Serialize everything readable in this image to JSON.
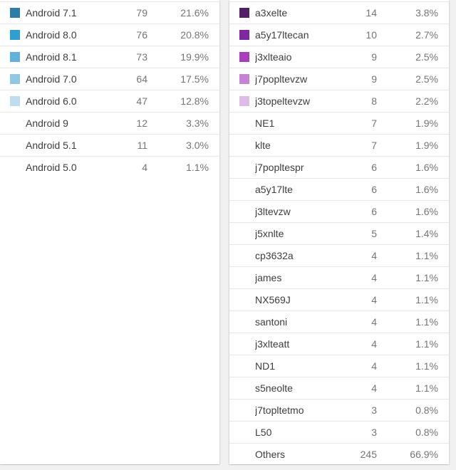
{
  "chart_data": [
    {
      "type": "table",
      "name": "android-version-distribution",
      "title": "",
      "columns": [
        "label",
        "count",
        "percent"
      ],
      "legend_position": "left",
      "rows": [
        {
          "label": "Android 7.1",
          "count": 79,
          "percent": "21.6%",
          "swatch": "#2d7daa"
        },
        {
          "label": "Android 8.0",
          "count": 76,
          "percent": "20.8%",
          "swatch": "#2f9ed3"
        },
        {
          "label": "Android 8.1",
          "count": 73,
          "percent": "19.9%",
          "swatch": "#64b1db"
        },
        {
          "label": "Android 7.0",
          "count": 64,
          "percent": "17.5%",
          "swatch": "#92c7e3"
        },
        {
          "label": "Android 6.0",
          "count": 47,
          "percent": "12.8%",
          "swatch": "#bedef0"
        },
        {
          "label": "Android 9",
          "count": 12,
          "percent": "3.3%",
          "swatch": null
        },
        {
          "label": "Android 5.1",
          "count": 11,
          "percent": "3.0%",
          "swatch": null
        },
        {
          "label": "Android 5.0",
          "count": 4,
          "percent": "1.1%",
          "swatch": null
        }
      ]
    },
    {
      "type": "table",
      "name": "device-model-distribution",
      "title": "",
      "columns": [
        "label",
        "count",
        "percent"
      ],
      "legend_position": "left",
      "rows": [
        {
          "label": "a3xelte",
          "count": 14,
          "percent": "3.8%",
          "swatch": "#521f66"
        },
        {
          "label": "a5y17ltecan",
          "count": 10,
          "percent": "2.7%",
          "swatch": "#7e27a0"
        },
        {
          "label": "j3xlteaio",
          "count": 9,
          "percent": "2.5%",
          "swatch": "#a73ebe"
        },
        {
          "label": "j7popltevzw",
          "count": 9,
          "percent": "2.5%",
          "swatch": "#c783d3"
        },
        {
          "label": "j3topeltevzw",
          "count": 8,
          "percent": "2.2%",
          "swatch": "#dfbce8"
        },
        {
          "label": "NE1",
          "count": 7,
          "percent": "1.9%",
          "swatch": null
        },
        {
          "label": "klte",
          "count": 7,
          "percent": "1.9%",
          "swatch": null
        },
        {
          "label": "j7popltespr",
          "count": 6,
          "percent": "1.6%",
          "swatch": null
        },
        {
          "label": "a5y17lte",
          "count": 6,
          "percent": "1.6%",
          "swatch": null
        },
        {
          "label": "j3ltevzw",
          "count": 6,
          "percent": "1.6%",
          "swatch": null
        },
        {
          "label": "j5xnlte",
          "count": 5,
          "percent": "1.4%",
          "swatch": null
        },
        {
          "label": "cp3632a",
          "count": 4,
          "percent": "1.1%",
          "swatch": null
        },
        {
          "label": "james",
          "count": 4,
          "percent": "1.1%",
          "swatch": null
        },
        {
          "label": "NX569J",
          "count": 4,
          "percent": "1.1%",
          "swatch": null
        },
        {
          "label": "santoni",
          "count": 4,
          "percent": "1.1%",
          "swatch": null
        },
        {
          "label": "j3xlteatt",
          "count": 4,
          "percent": "1.1%",
          "swatch": null
        },
        {
          "label": "ND1",
          "count": 4,
          "percent": "1.1%",
          "swatch": null
        },
        {
          "label": "s5neolte",
          "count": 4,
          "percent": "1.1%",
          "swatch": null
        },
        {
          "label": "j7topltetmo",
          "count": 3,
          "percent": "0.8%",
          "swatch": null
        },
        {
          "label": "L50",
          "count": 3,
          "percent": "0.8%",
          "swatch": null
        },
        {
          "label": "Others",
          "count": 245,
          "percent": "66.9%",
          "swatch": null
        }
      ]
    }
  ]
}
